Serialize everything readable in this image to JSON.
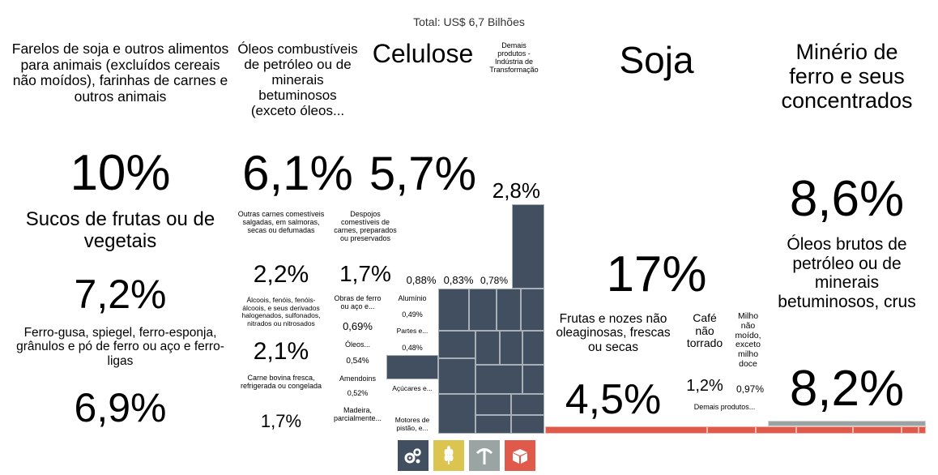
{
  "title": "Total: US$ 6,7 Bilhões",
  "colors": {
    "manufactured": "#424f60",
    "agriculture": "#dbc44f",
    "minerals": "#9aa4a3",
    "other": "#e05a4b"
  },
  "legend": [
    {
      "icon": "gears-icon",
      "color": "#424f60"
    },
    {
      "icon": "wheat-icon",
      "color": "#dbc44f"
    },
    {
      "icon": "pickaxe-icon",
      "color": "#9aa4a3"
    },
    {
      "icon": "box-icon",
      "color": "#e05a4b"
    }
  ],
  "chart_data": {
    "type": "treemap",
    "total": "US$ 6,7 Bilhões",
    "groups": [
      {
        "group": "manufactured",
        "items": [
          {
            "label": "Farelos de soja e outros alimentos para animais (excluídos cereais não moídos), farinhas de carnes e outros animais",
            "value": 10,
            "value_label": "10%"
          },
          {
            "label": "Sucos de frutas ou de vegetais",
            "value": 7.2,
            "value_label": "7,2%"
          },
          {
            "label": "Ferro-gusa, spiegel, ferro-esponja, grânulos e pó de ferro ou aço e ferro-ligas",
            "value": 6.9,
            "value_label": "6,9%"
          },
          {
            "label": "Óleos combustíveis de petróleo ou de minerais betuminosos (exceto óleos...",
            "value": 6.1,
            "value_label": "6,1%"
          },
          {
            "label": "Celulose",
            "value": 5.7,
            "value_label": "5,7%"
          },
          {
            "label": "Demais produtos - Indústria de Transformação",
            "value": 2.8,
            "value_label": "2,8%"
          },
          {
            "label": "Outras carnes comestíveis salgadas, em salmoras, secas ou defumadas",
            "value": 2.2,
            "value_label": "2,2%"
          },
          {
            "label": "Álcoois, fenóis, fenóis-álcoois, e seus derivados halogenados, sulfonados, nitrados ou nitrosados",
            "value": 2.1,
            "value_label": "2,1%"
          },
          {
            "label": "Carne bovina fresca, refrigerada ou congelada",
            "value": 1.7,
            "value_label": "1,7%"
          },
          {
            "label": "Despojos comestíveis de carnes, preparados ou preservados",
            "value": 1.7,
            "value_label": "1,7%"
          },
          {
            "label": "",
            "value": 0.88,
            "value_label": "0,88%"
          },
          {
            "label": "",
            "value": 0.83,
            "value_label": "0,83%"
          },
          {
            "label": "",
            "value": 0.78,
            "value_label": "0,78%"
          },
          {
            "label": "Obras de ferro ou aço e...",
            "value": 0.69,
            "value_label": "0,69%"
          },
          {
            "label": "Óleos...",
            "value": 0.54,
            "value_label": "0,54%"
          },
          {
            "label": "Amendoins",
            "value": 0.52,
            "value_label": "0,52%"
          },
          {
            "label": "Madeira, parcialmente...",
            "value": null,
            "value_label": ""
          },
          {
            "label": "Alumínio",
            "value": 0.49,
            "value_label": "0,49%"
          },
          {
            "label": "Partes e...",
            "value": 0.48,
            "value_label": "0,48%"
          },
          {
            "label": "Açúcares e...",
            "value": null,
            "value_label": ""
          },
          {
            "label": "Motores de pistão, e...",
            "value": null,
            "value_label": ""
          }
        ]
      },
      {
        "group": "agriculture",
        "items": [
          {
            "label": "Soja",
            "value": 17,
            "value_label": "17%"
          },
          {
            "label": "Frutas e nozes não oleaginosas, frescas ou secas",
            "value": 4.5,
            "value_label": "4,5%"
          },
          {
            "label": "Café não torrado",
            "value": 1.2,
            "value_label": "1,2%"
          },
          {
            "label": "Milho não moído, exceto milho doce",
            "value": 0.97,
            "value_label": "0,97%"
          },
          {
            "label": "Demais produtos...",
            "value": null,
            "value_label": ""
          }
        ]
      },
      {
        "group": "minerals",
        "items": [
          {
            "label": "Minério de ferro e seus concentrados",
            "value": 8.6,
            "value_label": "8,6%"
          },
          {
            "label": "Óleos brutos de petróleo ou de minerais betuminosos, crus",
            "value": 8.2,
            "value_label": "8,2%"
          }
        ]
      }
    ]
  }
}
